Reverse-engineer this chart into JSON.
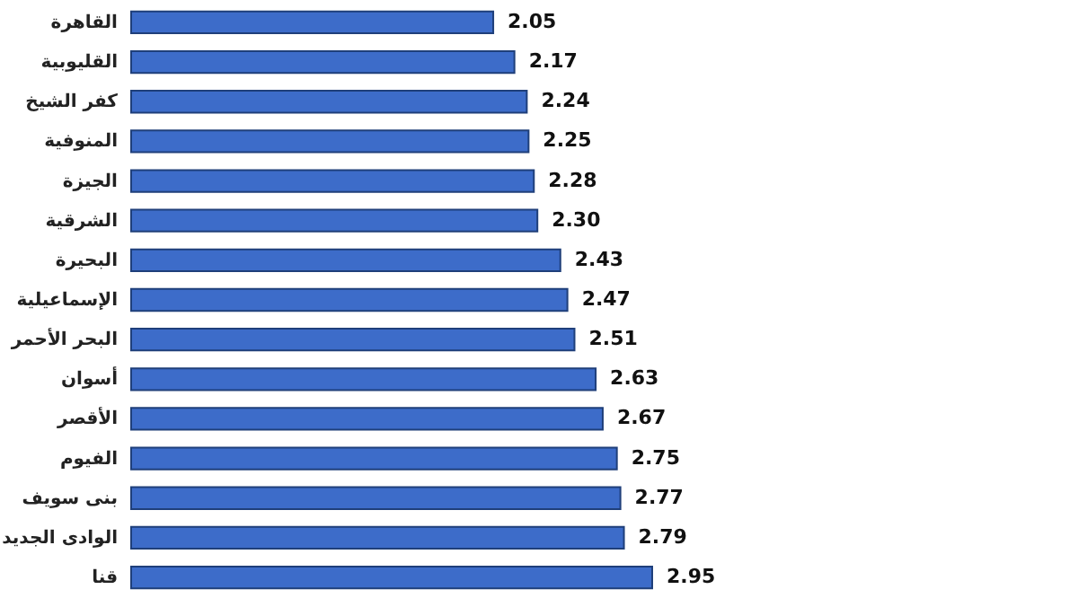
{
  "chart_data": {
    "type": "bar",
    "orientation": "horizontal",
    "categories": [
      "القاهرة",
      "القليوبية",
      "كفر الشيخ",
      "المنوفية",
      "الجيزة",
      "الشرقية",
      "البحيرة",
      "الإسماعيلية",
      "البحر الأحمر",
      "أسوان",
      "الأقصر",
      "الفيوم",
      "بنى سويف",
      "الوادى الجديد",
      "قنا"
    ],
    "values": [
      2.05,
      2.17,
      2.24,
      2.25,
      2.28,
      2.3,
      2.43,
      2.47,
      2.51,
      2.63,
      2.67,
      2.75,
      2.77,
      2.79,
      2.95
    ],
    "value_labels": [
      "2.05",
      "2.17",
      "2.24",
      "2.25",
      "2.28",
      "2.30",
      "2.43",
      "2.47",
      "2.51",
      "2.63",
      "2.67",
      "2.75",
      "2.77",
      "2.79",
      "2.95"
    ],
    "color": "#3d6cc9"
  }
}
